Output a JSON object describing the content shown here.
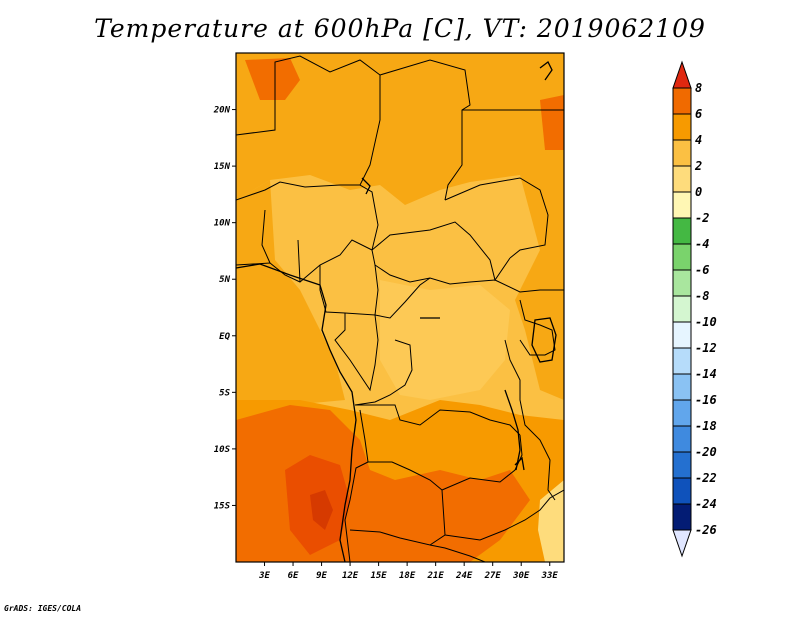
{
  "title": "Temperature at 600hPa [C], VT: 2019062109",
  "credit": "GrADS: IGES/COLA",
  "map": {
    "lon_range": [
      0,
      34.5
    ],
    "lat_range": [
      -20,
      25
    ],
    "x_ticks": [
      "3E",
      "6E",
      "9E",
      "12E",
      "15E",
      "18E",
      "21E",
      "24E",
      "27E",
      "30E",
      "33E"
    ],
    "y_ticks": [
      "20N",
      "15N",
      "10N",
      "5N",
      "EQ",
      "5S",
      "10S",
      "15S"
    ],
    "background_color": "#fbc043"
  },
  "colorbar": {
    "labels": [
      "8",
      "6",
      "4",
      "2",
      "0",
      "-2",
      "-4",
      "-6",
      "-8",
      "-10",
      "-12",
      "-14",
      "-16",
      "-18",
      "-20",
      "-22",
      "-24",
      "-26"
    ],
    "colors": [
      "#e63c00",
      "#f06a00",
      "#f79a00",
      "#fbc043",
      "#fedc7c",
      "#fff7b4",
      "#44b843",
      "#7ad36c",
      "#a9e69e",
      "#d4f6d0",
      "#e6f5ff",
      "#b6dcfa",
      "#8ac2f3",
      "#61a6ec",
      "#3f8adf",
      "#2470d0",
      "#0f52bb",
      "#031c74",
      "#0a0a5a"
    ],
    "top_arrow_color": "#e02810",
    "bottom_arrow_color": "#e0e6ff"
  }
}
